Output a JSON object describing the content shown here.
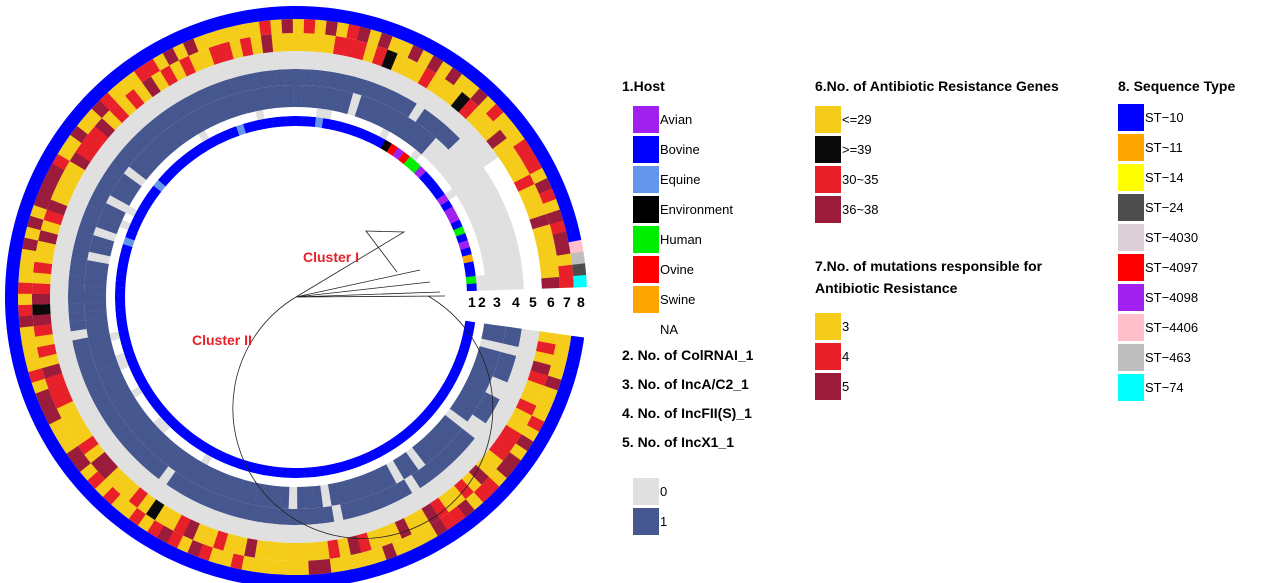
{
  "cluster_labels": {
    "cluster1": "Cluster I",
    "cluster2": "Cluster II"
  },
  "ring_numbers": [
    "1",
    "2",
    "3",
    "4",
    "5",
    "6",
    "7",
    "8"
  ],
  "legend_host": {
    "title": "1.Host",
    "items": [
      {
        "label": "Avian",
        "color": "#a020f0"
      },
      {
        "label": "Bovine",
        "color": "#0000ff"
      },
      {
        "label": "Equine",
        "color": "#6495ed"
      },
      {
        "label": "Environment",
        "color": "#000000"
      },
      {
        "label": "Human",
        "color": "#00ee00"
      },
      {
        "label": "Ovine",
        "color": "#ff0000"
      },
      {
        "label": "Swine",
        "color": "#ffa500"
      },
      {
        "label": "NA",
        "color": "#ffffff"
      }
    ]
  },
  "legend_plasmids": {
    "items": [
      "2. No. of ColRNAI_1",
      "3. No. of IncA/C2_1",
      "4. No. of IncFII(S)_1",
      "5. No. of IncX1_1"
    ],
    "scale": [
      {
        "label": "0",
        "color": "#e0e0e0"
      },
      {
        "label": "1",
        "color": "#46578f"
      }
    ]
  },
  "legend_arg": {
    "title": "6.No. of Antibiotic Resistance Genes",
    "items": [
      {
        "label": "<=29",
        "color": "#f5cc1a"
      },
      {
        "label": ">=39",
        "color": "#0a0a0a"
      },
      {
        "label": "30~35",
        "color": "#e8202a"
      },
      {
        "label": "36~38",
        "color": "#9b1c3a"
      }
    ]
  },
  "legend_mut": {
    "title_line1": "7.No. of  mutations responsible for",
    "title_line2": "Antibiotic Resistance",
    "items": [
      {
        "label": "3",
        "color": "#f5cc1a"
      },
      {
        "label": "4",
        "color": "#e8202a"
      },
      {
        "label": "5",
        "color": "#9b1c3a"
      }
    ]
  },
  "legend_st": {
    "title": "8. Sequence Type",
    "items": [
      {
        "label": "ST−10",
        "color": "#0000ff"
      },
      {
        "label": "ST−11",
        "color": "#ffa500"
      },
      {
        "label": "ST−14",
        "color": "#ffff00"
      },
      {
        "label": "ST−24",
        "color": "#4d4d4d"
      },
      {
        "label": "ST−4030",
        "color": "#ddd0d8"
      },
      {
        "label": "ST−4097",
        "color": "#ff0000"
      },
      {
        "label": "ST−4098",
        "color": "#a020f0"
      },
      {
        "label": "ST−4406",
        "color": "#ffc0cb"
      },
      {
        "label": "ST−463",
        "color": "#bebebe"
      },
      {
        "label": "ST−74",
        "color": "#00ffff"
      }
    ]
  }
}
